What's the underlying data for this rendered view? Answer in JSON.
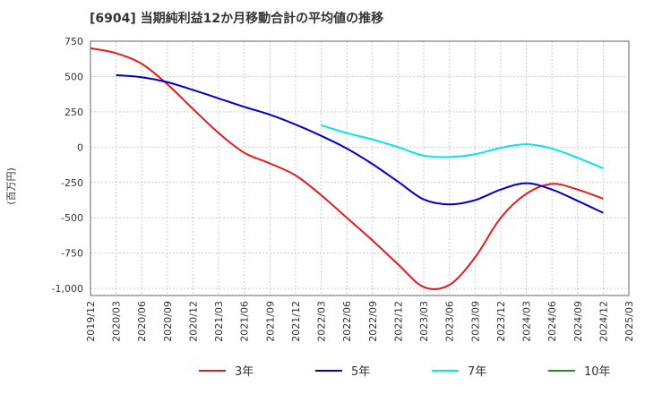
{
  "chart_data": {
    "type": "line",
    "title": "[6904]  当期純利益12か月移動合計の平均値の推移",
    "ylabel": "(百万円)",
    "xlabel": "",
    "ylim": [
      -1050,
      750
    ],
    "yticks": [
      750,
      500,
      250,
      0,
      -250,
      -500,
      -750,
      -1000
    ],
    "ytick_labels": [
      "750",
      "500",
      "250",
      "0",
      "-250",
      "-500",
      "-750",
      "-1,000"
    ],
    "x_ticks": [
      "2019/12",
      "2020/03",
      "2020/06",
      "2020/09",
      "2020/12",
      "2021/03",
      "2021/06",
      "2021/09",
      "2021/12",
      "2022/03",
      "2022/06",
      "2022/09",
      "2022/12",
      "2023/03",
      "2023/06",
      "2023/09",
      "2023/12",
      "2024/03",
      "2024/06",
      "2024/09",
      "2024/12",
      "2025/03"
    ],
    "grid": true,
    "legend_position": "bottom",
    "series": [
      {
        "name": "3年",
        "color": "#e41a1c",
        "points": [
          [
            "2019/12",
            700
          ],
          [
            "2020/03",
            665
          ],
          [
            "2020/06",
            590
          ],
          [
            "2020/09",
            445
          ],
          [
            "2020/12",
            270
          ],
          [
            "2021/03",
            100
          ],
          [
            "2021/06",
            -40
          ],
          [
            "2021/09",
            -115
          ],
          [
            "2021/12",
            -200
          ],
          [
            "2022/03",
            -340
          ],
          [
            "2022/06",
            -500
          ],
          [
            "2022/09",
            -660
          ],
          [
            "2022/12",
            -830
          ],
          [
            "2023/03",
            -990
          ],
          [
            "2023/06",
            -975
          ],
          [
            "2023/09",
            -780
          ],
          [
            "2023/12",
            -500
          ],
          [
            "2024/03",
            -330
          ],
          [
            "2024/06",
            -260
          ],
          [
            "2024/09",
            -300
          ],
          [
            "2024/12",
            -365
          ]
        ]
      },
      {
        "name": "5年",
        "color": "#0000cc",
        "points": [
          [
            "2020/03",
            510
          ],
          [
            "2020/06",
            495
          ],
          [
            "2020/09",
            460
          ],
          [
            "2020/12",
            405
          ],
          [
            "2021/03",
            345
          ],
          [
            "2021/06",
            285
          ],
          [
            "2021/09",
            230
          ],
          [
            "2021/12",
            160
          ],
          [
            "2022/03",
            80
          ],
          [
            "2022/06",
            -10
          ],
          [
            "2022/09",
            -120
          ],
          [
            "2022/12",
            -245
          ],
          [
            "2023/03",
            -370
          ],
          [
            "2023/06",
            -405
          ],
          [
            "2023/09",
            -375
          ],
          [
            "2023/12",
            -300
          ],
          [
            "2024/03",
            -255
          ],
          [
            "2024/06",
            -300
          ],
          [
            "2024/09",
            -380
          ],
          [
            "2024/12",
            -465
          ]
        ]
      },
      {
        "name": "7年",
        "color": "#00e5ee",
        "points": [
          [
            "2022/03",
            155
          ],
          [
            "2022/06",
            100
          ],
          [
            "2022/09",
            55
          ],
          [
            "2022/12",
            0
          ],
          [
            "2023/03",
            -60
          ],
          [
            "2023/06",
            -70
          ],
          [
            "2023/09",
            -50
          ],
          [
            "2023/12",
            -5
          ],
          [
            "2024/03",
            20
          ],
          [
            "2024/06",
            -10
          ],
          [
            "2024/09",
            -75
          ],
          [
            "2024/12",
            -150
          ]
        ]
      },
      {
        "name": "10年",
        "color": "#228b22",
        "points": []
      }
    ]
  }
}
